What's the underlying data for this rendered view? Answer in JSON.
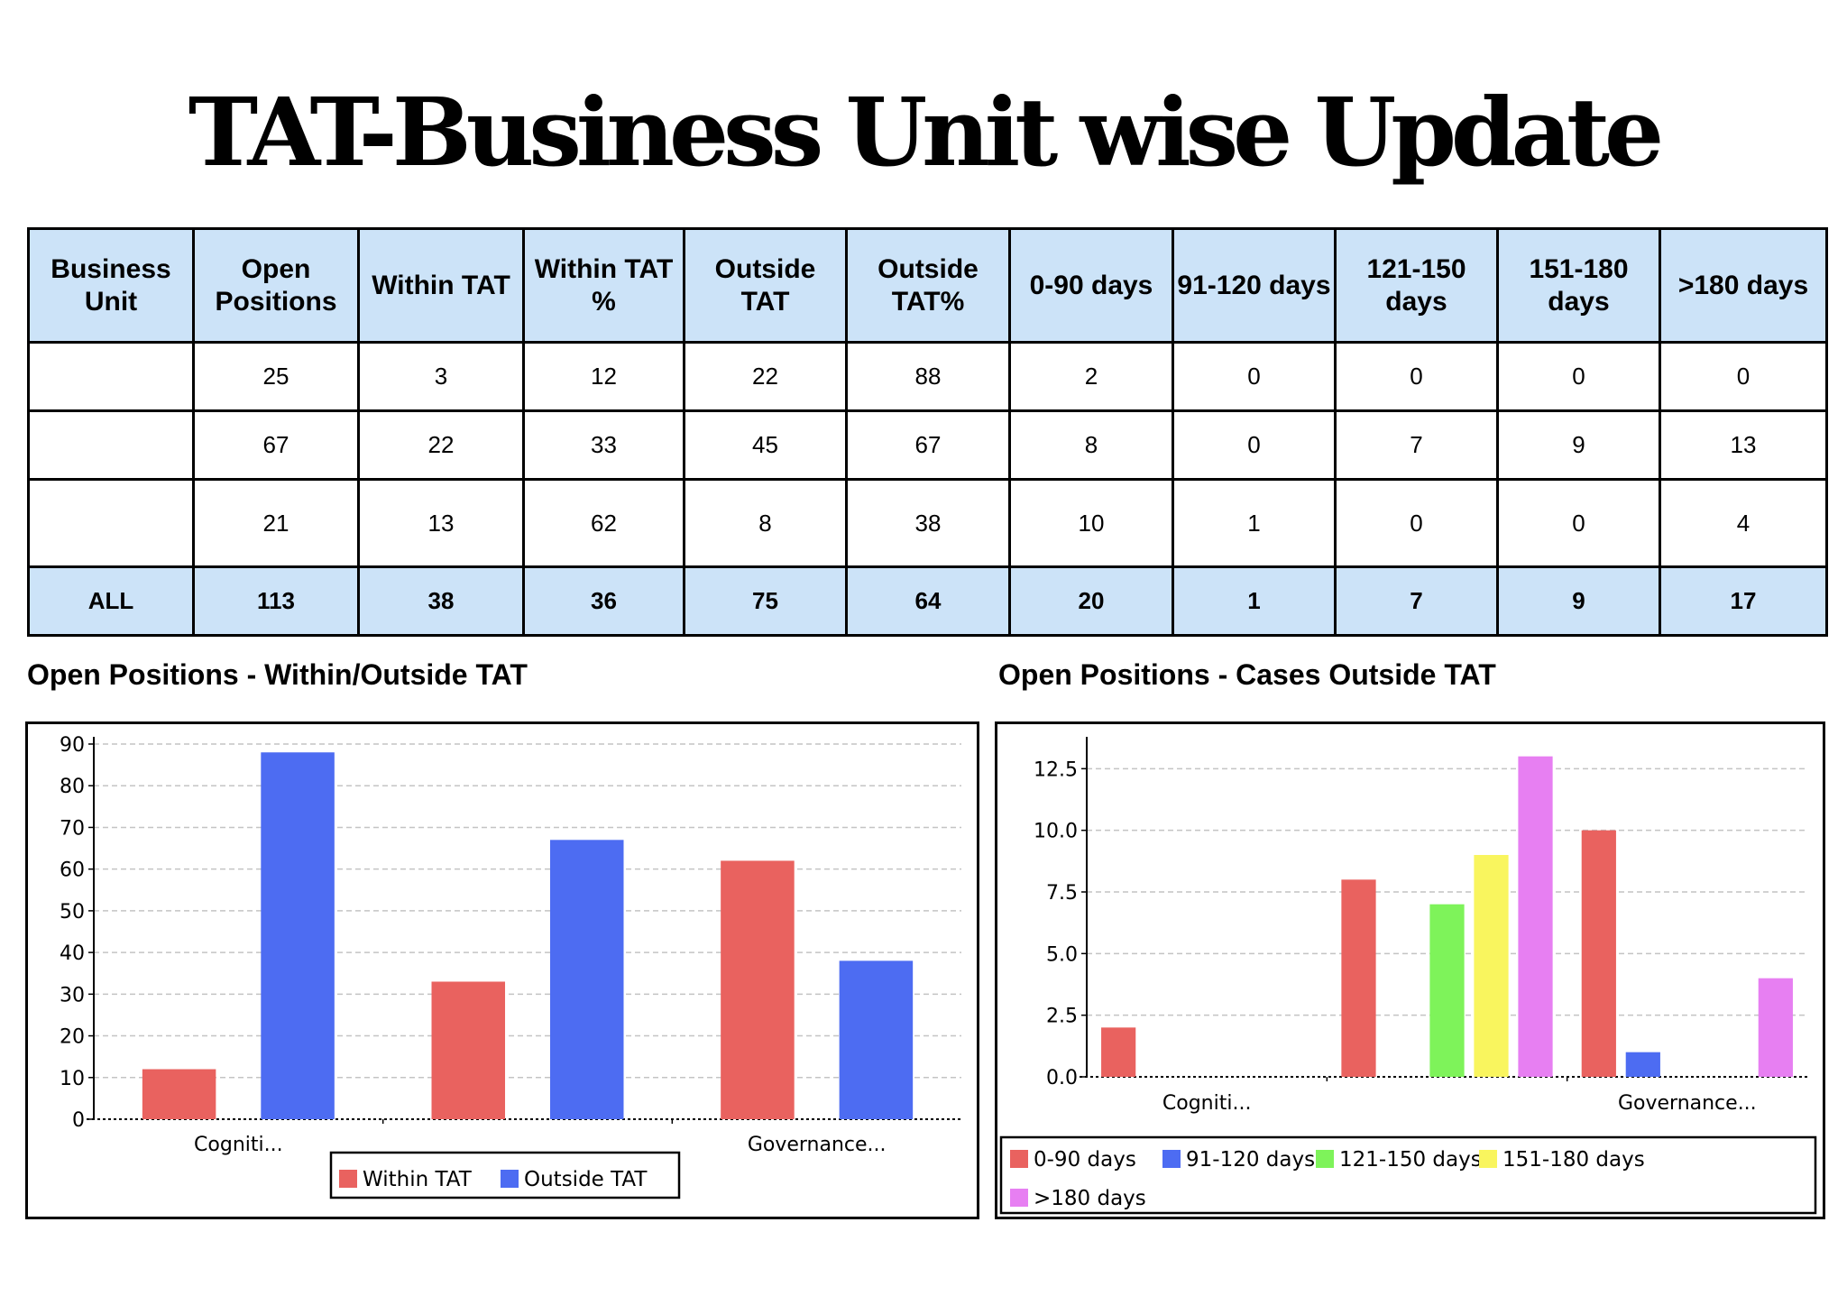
{
  "title": "TAT-Business Unit wise Update",
  "table": {
    "headers": [
      "Business Unit",
      "Open Positions",
      "Within TAT",
      "Within TAT %",
      "Outside TAT",
      "Outside TAT%",
      "0-90 days",
      "91-120 days",
      "121-150 days",
      "151-180 days",
      ">180 days"
    ],
    "rows": [
      [
        "",
        "25",
        "3",
        "12",
        "22",
        "88",
        "2",
        "0",
        "0",
        "0",
        "0"
      ],
      [
        "",
        "67",
        "22",
        "33",
        "45",
        "67",
        "8",
        "0",
        "7",
        "9",
        "13"
      ],
      [
        "",
        "21",
        "13",
        "62",
        "8",
        "38",
        "10",
        "1",
        "0",
        "0",
        "4"
      ],
      [
        "ALL",
        "113",
        "38",
        "36",
        "75",
        "64",
        "20",
        "1",
        "7",
        "9",
        "17"
      ]
    ]
  },
  "chart_data": [
    {
      "type": "bar",
      "title": "Open Positions - Within/Outside TAT",
      "categories": [
        "Cogniti...",
        "",
        "Governance..."
      ],
      "series": [
        {
          "name": "Within TAT",
          "color": "#e9625f",
          "values": [
            12,
            33,
            62
          ]
        },
        {
          "name": "Outside TAT",
          "color": "#4d6cf2",
          "values": [
            88,
            67,
            38
          ]
        }
      ],
      "ylim": [
        0,
        90
      ],
      "yticks": [
        "0",
        "10",
        "20",
        "30",
        "40",
        "50",
        "60",
        "70",
        "80",
        "90"
      ],
      "grid": true,
      "legend": "bottom"
    },
    {
      "type": "bar",
      "title": "Open Positions - Cases Outside TAT",
      "categories": [
        "Cogniti...",
        "",
        "Governance..."
      ],
      "series": [
        {
          "name": "0-90 days",
          "color": "#e9625f",
          "values": [
            2,
            8,
            10
          ]
        },
        {
          "name": "91-120 days",
          "color": "#4d6cf2",
          "values": [
            0,
            0,
            1
          ]
        },
        {
          "name": "121-150 days",
          "color": "#7ef35a",
          "values": [
            0,
            7,
            0
          ]
        },
        {
          "name": "151-180 days",
          "color": "#f9f55e",
          "values": [
            0,
            9,
            0
          ]
        },
        {
          "name": ">180 days",
          "color": "#e77ff2",
          "values": [
            0,
            13,
            4
          ]
        }
      ],
      "ylim": [
        0,
        13.5
      ],
      "yticks": [
        "0.0",
        "2.5",
        "5.0",
        "7.5",
        "10.0",
        "12.5"
      ],
      "grid": true,
      "legend": "bottom"
    }
  ]
}
